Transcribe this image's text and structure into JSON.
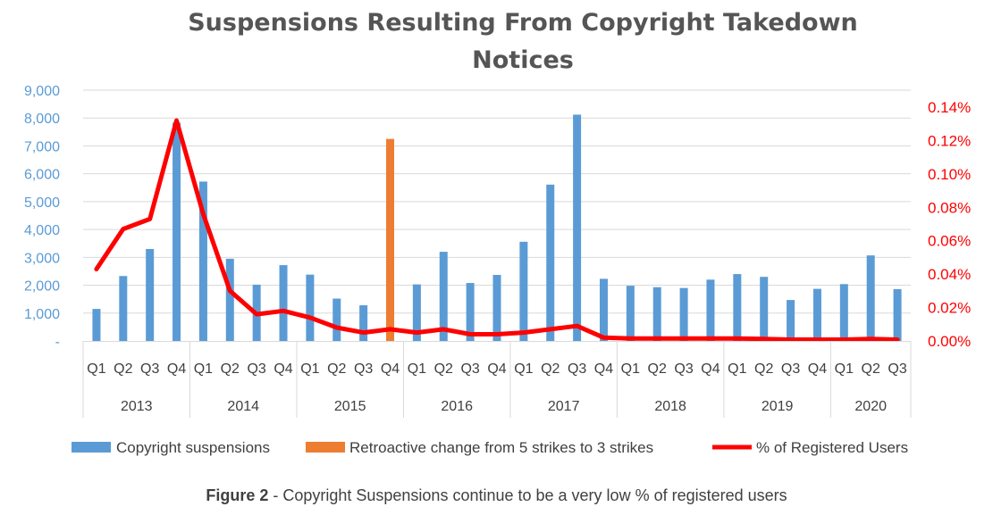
{
  "caption": {
    "bold": "Figure 2",
    "rest": " - Copyright Suspensions continue to be a very low % of registered users"
  },
  "colors": {
    "suspensions": "#5b9bd5",
    "retroactive": "#ed7d31",
    "percent_line": "#ff0000",
    "left_axis_text": "#5b9bd5",
    "right_axis_text": "#ff0000",
    "grid": "#d9d9d9"
  },
  "chart_data": {
    "type": "bar",
    "title": "Suspensions Resulting From Copyright Takedown Notices",
    "title_lines": [
      "Suspensions Resulting From Copyright Takedown",
      "Notices"
    ],
    "years": [
      {
        "label": "2013",
        "quarters": [
          "Q1",
          "Q2",
          "Q3",
          "Q4"
        ]
      },
      {
        "label": "2014",
        "quarters": [
          "Q1",
          "Q2",
          "Q3",
          "Q4"
        ]
      },
      {
        "label": "2015",
        "quarters": [
          "Q1",
          "Q2",
          "Q3",
          "Q4"
        ]
      },
      {
        "label": "2016",
        "quarters": [
          "Q1",
          "Q2",
          "Q3",
          "Q4"
        ]
      },
      {
        "label": "2017",
        "quarters": [
          "Q1",
          "Q2",
          "Q3",
          "Q4"
        ]
      },
      {
        "label": "2018",
        "quarters": [
          "Q1",
          "Q2",
          "Q3",
          "Q4"
        ]
      },
      {
        "label": "2019",
        "quarters": [
          "Q1",
          "Q2",
          "Q3",
          "Q4"
        ]
      },
      {
        "label": "2020",
        "quarters": [
          "Q1",
          "Q2",
          "Q3"
        ]
      }
    ],
    "series": [
      {
        "name": "Copyright suspensions",
        "kind": "bar",
        "axis": "left",
        "values": [
          1150,
          2330,
          3300,
          7830,
          5720,
          2950,
          2020,
          2720,
          2380,
          1520,
          1280,
          2240,
          2030,
          3200,
          2080,
          2370,
          3560,
          5610,
          8120,
          2230,
          1980,
          1930,
          1900,
          2200,
          2400,
          2300,
          1470,
          1870,
          2040,
          3070,
          1860
        ]
      },
      {
        "name": "Retroactive change from 5 strikes to 3 strikes",
        "kind": "bar",
        "axis": "left",
        "values": [
          null,
          null,
          null,
          null,
          null,
          null,
          null,
          null,
          null,
          null,
          null,
          7250,
          null,
          null,
          null,
          null,
          null,
          null,
          null,
          null,
          null,
          null,
          null,
          null,
          null,
          null,
          null,
          null,
          null,
          null,
          null
        ]
      },
      {
        "name": "% of Registered Users",
        "kind": "line",
        "axis": "right",
        "values": [
          0.043,
          0.067,
          0.073,
          0.132,
          0.076,
          0.03,
          0.016,
          0.018,
          0.014,
          0.008,
          0.005,
          0.007,
          0.005,
          0.007,
          0.004,
          0.004,
          0.005,
          0.007,
          0.009,
          0.002,
          0.0015,
          0.0015,
          0.0015,
          0.0015,
          0.0015,
          0.0012,
          0.0008,
          0.0008,
          0.0008,
          0.0012,
          0.0008
        ]
      }
    ],
    "left_axis": {
      "ylim": [
        0,
        9000
      ],
      "ticks": [
        0,
        1000,
        2000,
        3000,
        4000,
        5000,
        6000,
        7000,
        8000,
        9000
      ],
      "tick_labels": [
        "-",
        "1,000",
        "2,000",
        "3,000",
        "4,000",
        "5,000",
        "6,000",
        "7,000",
        "8,000",
        "9,000"
      ]
    },
    "right_axis": {
      "ylim": [
        0,
        0.14
      ],
      "ticks": [
        0,
        0.02,
        0.04,
        0.06,
        0.08,
        0.1,
        0.12,
        0.14
      ],
      "tick_labels": [
        "0.00%",
        "0.02%",
        "0.04%",
        "0.06%",
        "0.08%",
        "0.10%",
        "0.12%",
        "0.14%"
      ]
    },
    "grid": true,
    "legend": "bottom"
  }
}
